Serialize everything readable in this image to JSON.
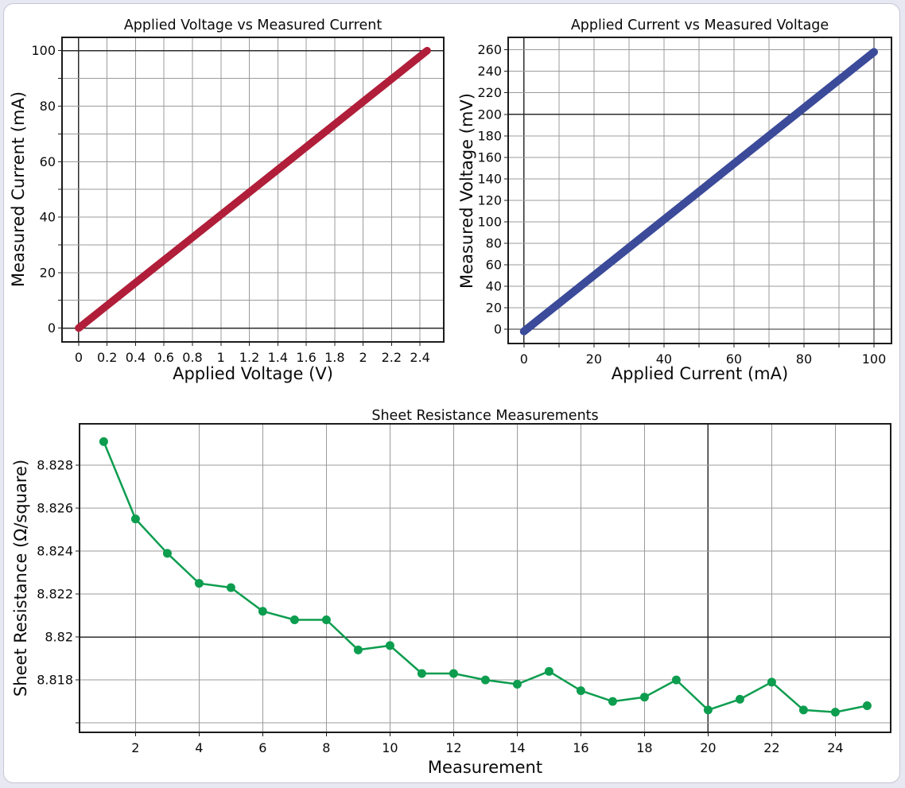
{
  "page": {
    "background_color": "#e8e8f2",
    "canvas_color": "#ffffff",
    "canvas_border_color": "#c6c6d6",
    "grid_color": "#9b9b9b",
    "emphasized_grid_color": "#2d2d2d",
    "frame_color": "#1c1c1c"
  },
  "chart_data": [
    {
      "id": "applied-voltage-vs-measured-current",
      "type": "line",
      "title": "Applied Voltage vs Measured Current",
      "xlabel": "Applied Voltage (V)",
      "ylabel": "Measured Current (mA)",
      "series": [
        {
          "name": "iv-sweep",
          "color": "#b01e39",
          "line_width": 9.5,
          "markers": false,
          "x": [
            0,
            0.25,
            0.5,
            0.75,
            1.0,
            1.25,
            1.5,
            1.75,
            2.0,
            2.25,
            2.45
          ],
          "y": [
            0,
            10.2,
            20.4,
            30.6,
            40.8,
            51.0,
            61.2,
            71.4,
            81.6,
            91.8,
            100.0
          ]
        }
      ],
      "xlim": [
        -0.117,
        2.567
      ],
      "ylim": [
        -5.0,
        104.8
      ],
      "grid": true,
      "legend": "none",
      "xticks": {
        "values": [
          0,
          0.2,
          0.4,
          0.6,
          0.8,
          1,
          1.2,
          1.4,
          1.6,
          1.8,
          2,
          2.2,
          2.4
        ],
        "labels": [
          "0",
          "0.2",
          "0.4",
          "0.6",
          "0.8",
          "1",
          "1.2",
          "1.4",
          "1.6",
          "1.8",
          "2",
          "2.2",
          "2.4"
        ]
      },
      "yticks": {
        "values": [
          0,
          10,
          20,
          30,
          40,
          50,
          60,
          70,
          80,
          90,
          100
        ],
        "labels": [
          "0",
          "",
          "20",
          "",
          "40",
          "",
          "60",
          "",
          "80",
          "",
          "100"
        ]
      },
      "emphasized_x": [
        0
      ],
      "emphasized_y": [
        0,
        100
      ]
    },
    {
      "id": "applied-current-vs-measured-voltage",
      "type": "line",
      "title": "Applied Current vs Measured Voltage",
      "xlabel": "Applied Current (mA)",
      "ylabel": "Measured Voltage (mV)",
      "series": [
        {
          "name": "vi-sweep",
          "color": "#3b4a99",
          "line_width": 10,
          "markers": false,
          "x": [
            0,
            10,
            20,
            30,
            40,
            50,
            60,
            70,
            80,
            90,
            100
          ],
          "y": [
            -2,
            24,
            50,
            76,
            102,
            128,
            154,
            180,
            206,
            232,
            258
          ]
        }
      ],
      "xlim": [
        -4.5,
        105.0
      ],
      "ylim": [
        -13.3,
        271.6
      ],
      "grid": true,
      "legend": "none",
      "xticks": {
        "values": [
          0,
          10,
          20,
          30,
          40,
          50,
          60,
          70,
          80,
          90,
          100
        ],
        "labels": [
          "0",
          "",
          "20",
          "",
          "40",
          "",
          "60",
          "",
          "80",
          "",
          "100"
        ]
      },
      "yticks": {
        "values": [
          0,
          20,
          40,
          60,
          80,
          100,
          120,
          140,
          160,
          180,
          200,
          220,
          240,
          260
        ],
        "labels": [
          "0",
          "20",
          "40",
          "60",
          "80",
          "100",
          "120",
          "140",
          "160",
          "180",
          "200",
          "220",
          "240",
          "260"
        ]
      },
      "emphasized_x": [
        0,
        100
      ],
      "emphasized_y": [
        0,
        200
      ]
    },
    {
      "id": "sheet-resistance-measurements",
      "type": "line",
      "title": "Sheet Resistance Measurements",
      "xlabel": "Measurement",
      "ylabel": "Sheet Resistance (Ω/square)",
      "series": [
        {
          "name": "sheet-resistance",
          "color": "#0d9d4f",
          "line_width": 2.5,
          "markers": true,
          "marker_radius": 5.5,
          "x": [
            1,
            2,
            3,
            4,
            5,
            6,
            7,
            8,
            9,
            10,
            11,
            12,
            13,
            14,
            15,
            16,
            17,
            18,
            19,
            20,
            21,
            22,
            23,
            24,
            25
          ],
          "y": [
            8.8291,
            8.8255,
            8.8239,
            8.8225,
            8.8223,
            8.8212,
            8.8208,
            8.8208,
            8.8194,
            8.8196,
            8.8183,
            8.8183,
            8.818,
            8.8178,
            8.8184,
            8.8175,
            8.817,
            8.8172,
            8.818,
            8.8166,
            8.8171,
            8.8179,
            8.8166,
            8.8165,
            8.8168
          ]
        }
      ],
      "xlim": [
        0.24,
        25.74
      ],
      "ylim": [
        8.81556,
        8.82993
      ],
      "grid": true,
      "legend": "none",
      "xticks": {
        "values": [
          2,
          4,
          6,
          8,
          10,
          12,
          14,
          16,
          18,
          20,
          22,
          24
        ],
        "labels": [
          "2",
          "4",
          "6",
          "8",
          "10",
          "12",
          "14",
          "16",
          "18",
          "20",
          "22",
          "24"
        ]
      },
      "yticks": {
        "values": [
          8.816,
          8.818,
          8.82,
          8.822,
          8.824,
          8.826,
          8.828
        ],
        "labels": [
          "",
          "8.818",
          "8.82",
          "8.822",
          "8.824",
          "8.826",
          "8.828"
        ]
      },
      "emphasized_x": [
        20
      ],
      "emphasized_y": [
        8.82
      ]
    }
  ]
}
